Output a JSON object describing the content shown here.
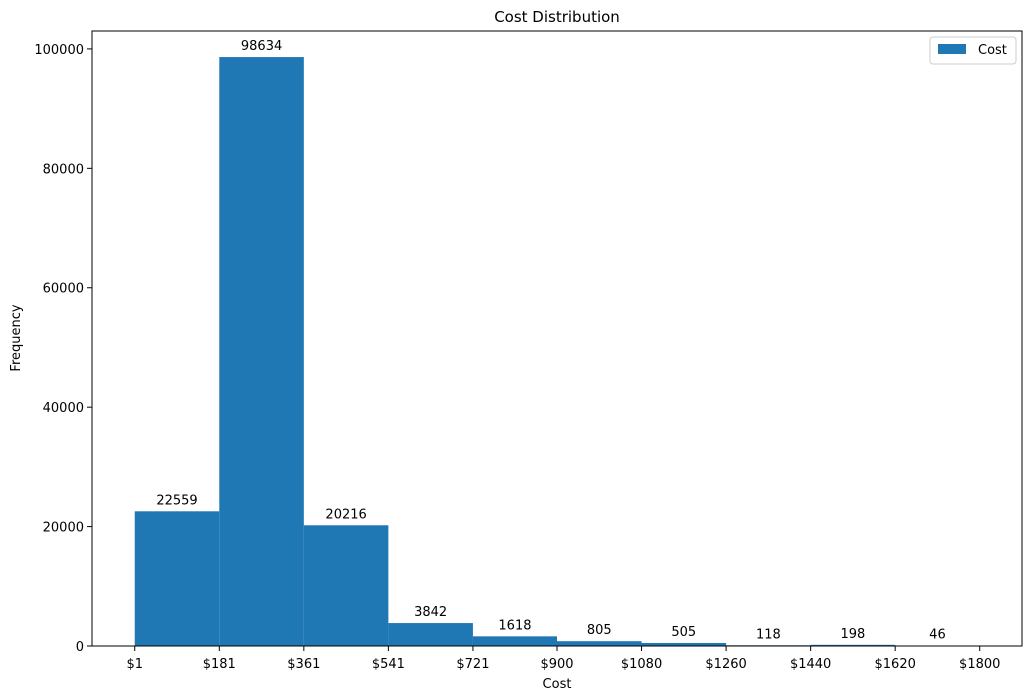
{
  "chart_data": {
    "type": "bar",
    "title": "Cost Distribution",
    "xlabel": "Cost",
    "ylabel": "Frequency",
    "ylim": [
      0,
      103000
    ],
    "xlim": [
      -90,
      1890
    ],
    "bin_edges": [
      1,
      181,
      361,
      541,
      721,
      900,
      1080,
      1260,
      1440,
      1620,
      1800
    ],
    "series": [
      {
        "name": "Cost",
        "values": [
          22559,
          98634,
          20216,
          3842,
          1618,
          805,
          505,
          118,
          198,
          46
        ]
      }
    ],
    "x_tick_labels": [
      "$1",
      "$181",
      "$361",
      "$541",
      "$721",
      "$900",
      "$1080",
      "$1260",
      "$1440",
      "$1620",
      "$1800"
    ],
    "y_ticks": [
      0,
      20000,
      40000,
      60000,
      80000,
      100000
    ],
    "legend_position": "top-right",
    "grid": false,
    "bar_color": "#1f77b4"
  }
}
